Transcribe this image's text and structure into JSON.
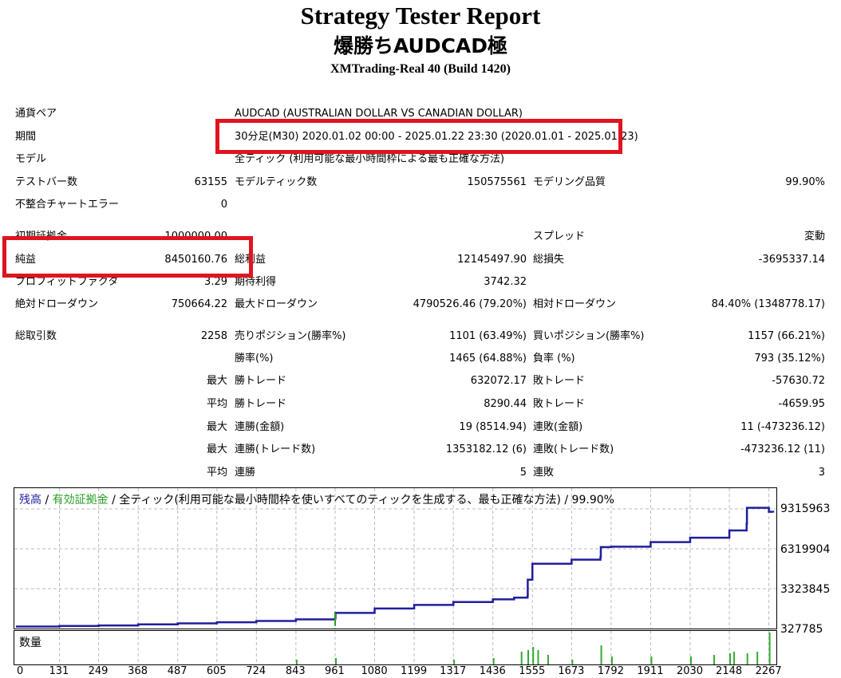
{
  "header": {
    "title": "Strategy Tester Report",
    "subtitle": "爆勝ちAUDCAD極",
    "server": "XMTrading-Real 40 (Build 1420)"
  },
  "report": {
    "symbol_label": "通貨ペア",
    "symbol_value": "AUDCAD (AUSTRALIAN DOLLAR VS CANADIAN DOLLAR)",
    "period_label": "期間",
    "period_value": "30分足(M30) 2020.01.02 00:00 - 2025.01.22 23:30 (2020.01.01 - 2025.01.23)",
    "model_label": "モデル",
    "model_value": "全ティック (利用可能な最小時間枠による最も正確な方法)",
    "bars_label": "テストバー数",
    "bars_value": "63155",
    "ticks_label": "モデルティック数",
    "ticks_value": "150575561",
    "quality_label": "モデリング品質",
    "quality_value": "99.90%",
    "mismatch_label": "不整合チャートエラー",
    "mismatch_value": "0",
    "deposit_label": "初期証拠金",
    "deposit_value": "1000000.00",
    "spread_label": "スプレッド",
    "spread_value": "変動",
    "net_profit_label": "純益",
    "net_profit_value": "8450160.76",
    "gross_profit_label": "総利益",
    "gross_profit_value": "12145497.90",
    "gross_loss_label": "総損失",
    "gross_loss_value": "-3695337.14",
    "profit_factor_label": "プロフィットファクタ",
    "profit_factor_value": "3.29",
    "expected_payoff_label": "期待利得",
    "expected_payoff_value": "3742.32",
    "abs_dd_label": "絶対ドローダウン",
    "abs_dd_value": "750664.22",
    "max_dd_label": "最大ドローダウン",
    "max_dd_value": "4790526.46 (79.20%)",
    "rel_dd_label": "相対ドローダウン",
    "rel_dd_value": "84.40% (1348778.17)",
    "total_trades_label": "総取引数",
    "total_trades_value": "2258",
    "short_label": "売りポジション(勝率%)",
    "short_value": "1101 (63.49%)",
    "long_label": "買いポジション(勝率%)",
    "long_value": "1157 (66.21%)",
    "win_rate_label": "勝率(%)",
    "win_rate_value": "1465 (64.88%)",
    "loss_rate_label": "負率 (%)",
    "loss_rate_value": "793 (35.12%)",
    "max_label": "最大",
    "avg_label": "平均",
    "largest_win_label": "勝トレード",
    "largest_win_value": "632072.17",
    "largest_loss_label": "敗トレード",
    "largest_loss_value": "-57630.72",
    "avg_win_label": "勝トレード",
    "avg_win_value": "8290.44",
    "avg_loss_label": "敗トレード",
    "avg_loss_value": "-4659.95",
    "max_consec_wins_label": "連勝(金額)",
    "max_consec_wins_value": "19 (8514.94)",
    "max_consec_losses_label": "連敗(金額)",
    "max_consec_losses_value": "11 (-473236.12)",
    "max_consec_profit_label": "連勝(トレード数)",
    "max_consec_profit_value": "1353182.12 (6)",
    "max_consec_loss_label": "連敗(トレード数)",
    "max_consec_loss_value": "-473236.12 (11)",
    "avg_consec_wins_label": "連勝",
    "avg_consec_wins_value": "5",
    "avg_consec_losses_label": "連敗",
    "avg_consec_losses_value": "3"
  },
  "chart": {
    "legend_balance": "残高",
    "legend_sep1": " / ",
    "legend_equity": "有効証拠金",
    "legend_rest": " / 全ティック(利用可能な最小時間枠を使いすべてのティックを生成する、最も正確な方法) / 99.90%",
    "volume_label": "数量",
    "colors": {
      "balance": "#1f1f9e",
      "equity": "#2aa02a",
      "volume": "#33aa33",
      "grid": "#bbbbbb"
    }
  },
  "chart_data": {
    "type": "line",
    "series": [
      {
        "name": "残高",
        "x": [
          0,
          131,
          249,
          368,
          487,
          605,
          724,
          843,
          961,
          962,
          1080,
          1199,
          1317,
          1436,
          1500,
          1540,
          1541,
          1555,
          1673,
          1760,
          1761,
          1792,
          1911,
          2030,
          2148,
          2200,
          2201,
          2267,
          2280
        ],
        "y": [
          480000,
          520000,
          560000,
          640000,
          720000,
          800000,
          900000,
          1020000,
          1120000,
          1500000,
          1830000,
          2100000,
          2320000,
          2520000,
          2650000,
          2720000,
          4000000,
          5200000,
          5500000,
          5700000,
          6450000,
          6480000,
          6820000,
          7150000,
          7700000,
          8200000,
          9400000,
          9100000,
          9050000
        ]
      }
    ],
    "y_ticks": [
      "9315963",
      "6319904",
      "3323845",
      "327785"
    ],
    "x_ticks": [
      "0",
      "131",
      "249",
      "368",
      "487",
      "605",
      "724",
      "843",
      "961",
      "1080",
      "1199",
      "1317",
      "1436",
      "1555",
      "1673",
      "1792",
      "1911",
      "2030",
      "2148",
      "2267"
    ],
    "volume_x": [
      843,
      961,
      1317,
      1436,
      1520,
      1540,
      1555,
      1570,
      1600,
      1673,
      1760,
      1792,
      1911,
      2030,
      2100,
      2148,
      2160,
      2200,
      2230,
      2267
    ],
    "volume_y": [
      0.15,
      0.2,
      0.15,
      0.2,
      0.4,
      0.45,
      0.55,
      0.45,
      0.3,
      0.15,
      0.6,
      0.25,
      0.25,
      0.25,
      0.3,
      0.35,
      0.4,
      0.35,
      0.4,
      1.0
    ],
    "xlabel": "",
    "ylabel": ""
  }
}
